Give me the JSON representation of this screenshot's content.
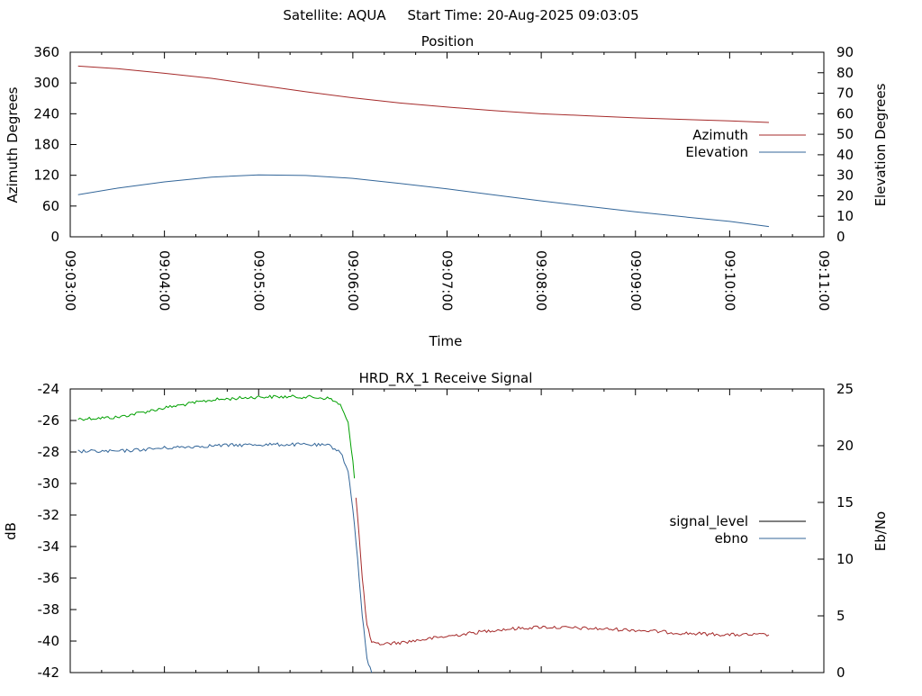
{
  "header": {
    "title": "Satellite: AQUA     Start Time: 20-Aug-2025 09:03:05"
  },
  "chart_data": [
    {
      "type": "line",
      "title": "Position",
      "xlabel": "Time",
      "ylabel": "Azimuth Degrees",
      "y2label": "Elevation Degrees",
      "xlim": [
        "09:03:00",
        "09:11:00"
      ],
      "ylim": [
        0,
        360
      ],
      "y2lim": [
        0,
        90
      ],
      "x_ticks": [
        "09:03:00",
        "09:04:00",
        "09:05:00",
        "09:06:00",
        "09:07:00",
        "09:08:00",
        "09:09:00",
        "09:10:00",
        "09:11:00"
      ],
      "y_ticks": [
        "0",
        "60",
        "120",
        "180",
        "240",
        "300",
        "360"
      ],
      "y2_ticks": [
        "0",
        "10",
        "20",
        "30",
        "40",
        "50",
        "60",
        "70",
        "80",
        "90"
      ],
      "legend_position": "right",
      "grid": false,
      "series": [
        {
          "name": "Azimuth",
          "axis": "y",
          "color": "#a52a2a",
          "x": [
            "09:03:05",
            "09:03:30",
            "09:04:00",
            "09:04:30",
            "09:05:00",
            "09:05:30",
            "09:06:00",
            "09:06:30",
            "09:07:00",
            "09:07:30",
            "09:08:00",
            "09:08:30",
            "09:09:00",
            "09:09:30",
            "09:10:00",
            "09:10:25"
          ],
          "y": [
            333,
            328,
            319,
            309,
            296,
            283,
            271,
            261,
            253,
            246,
            240,
            236,
            232,
            229,
            226,
            223
          ]
        },
        {
          "name": "Elevation",
          "axis": "y2",
          "color": "#336699",
          "x": [
            "09:03:05",
            "09:03:30",
            "09:04:00",
            "09:04:30",
            "09:05:00",
            "09:05:30",
            "09:06:00",
            "09:06:30",
            "09:07:00",
            "09:07:30",
            "09:08:00",
            "09:08:30",
            "09:09:00",
            "09:09:30",
            "09:10:00",
            "09:10:25"
          ],
          "y": [
            20.5,
            23.7,
            26.8,
            29.1,
            30.2,
            29.9,
            28.5,
            26.0,
            23.4,
            20.4,
            17.5,
            14.8,
            12.2,
            9.8,
            7.5,
            5.0
          ]
        }
      ]
    },
    {
      "type": "line",
      "title": "HRD_RX_1 Receive Signal",
      "xlabel": "",
      "ylabel": "dB",
      "y2label": "Eb/No",
      "xlim": [
        "09:03:00",
        "09:11:00"
      ],
      "ylim": [
        -42,
        -24
      ],
      "y2lim": [
        0,
        25
      ],
      "y_ticks": [
        "-42",
        "-40",
        "-38",
        "-36",
        "-34",
        "-32",
        "-30",
        "-28",
        "-26",
        "-24"
      ],
      "y2_ticks": [
        "0",
        "5",
        "10",
        "15",
        "20",
        "25"
      ],
      "legend_position": "right",
      "grid": false,
      "series": [
        {
          "name": "signal_level",
          "axis": "y",
          "color": "#000000",
          "x": [
            "09:03:05",
            "09:03:30",
            "09:04:00",
            "09:04:30",
            "09:05:00",
            "09:05:30",
            "09:05:45",
            "09:05:52",
            "09:05:57",
            "09:06:00",
            "09:06:03",
            "09:06:06",
            "09:06:09",
            "09:06:12",
            "09:06:15",
            "09:06:30",
            "09:07:00",
            "09:07:30",
            "09:08:00",
            "09:08:30",
            "09:09:00",
            "09:09:30",
            "09:10:00",
            "09:10:25"
          ],
          "y": [
            -25.9,
            -25.8,
            -25.2,
            -24.7,
            -24.5,
            -24.5,
            -24.6,
            -25.0,
            -26.2,
            -28.5,
            -32.0,
            -36.0,
            -39.0,
            -40.1,
            -40.2,
            -40.1,
            -39.7,
            -39.3,
            -39.1,
            -39.2,
            -39.3,
            -39.5,
            -39.6,
            -39.6
          ]
        },
        {
          "name": "ebno",
          "axis": "y2",
          "color": "#336699",
          "x": [
            "09:03:05",
            "09:03:30",
            "09:04:00",
            "09:04:30",
            "09:05:00",
            "09:05:30",
            "09:05:45",
            "09:05:52",
            "09:05:57",
            "09:06:00",
            "09:06:03",
            "09:06:06",
            "09:06:09",
            "09:06:12"
          ],
          "y": [
            19.5,
            19.5,
            19.8,
            20.0,
            20.1,
            20.1,
            20.0,
            19.5,
            17.7,
            14.5,
            10.0,
            5.0,
            1.2,
            0
          ]
        }
      ]
    }
  ]
}
